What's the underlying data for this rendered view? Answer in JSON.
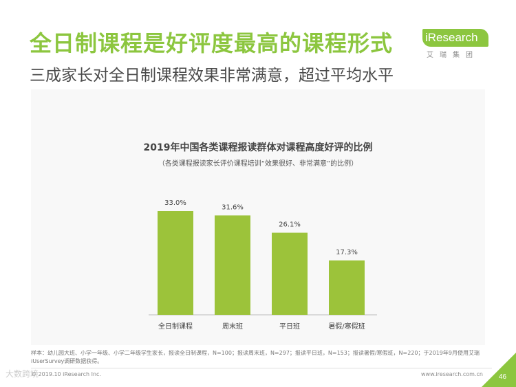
{
  "header": {
    "title": "全日制课程是好评度最高的课程形式",
    "subtitle": "三成家长对全日制课程效果非常满意，超过平均水平"
  },
  "logo": {
    "text": "iResearch",
    "chinese": "艾瑞集团",
    "color": "#8cc63f"
  },
  "chart_data": {
    "type": "bar",
    "title": "2019年中国各类课程报读群体对课程高度好评的比例",
    "subtitle": "（各类课程报读家长评价课程培训“效果很好、非常满意”的比例）",
    "categories": [
      "全日制课程",
      "周末班",
      "平日班",
      "暑假/寒假班"
    ],
    "values": [
      33.0,
      31.6,
      26.1,
      17.3
    ],
    "value_labels": [
      "33.0%",
      "31.6%",
      "26.1%",
      "17.3%"
    ],
    "bar_color": "#9cc33a",
    "ylim": [
      0,
      33.0
    ],
    "grid": false,
    "xlabel": "",
    "ylabel": ""
  },
  "footer": {
    "note": "样本：幼儿园大班、小学一年级、小学二年级学生家长，报读全日制课程，N=100；报读周末班，N=297；报读平日班，N=153；报读暑假/寒假班，N=220；于2019年9月使用艾瑞iUserSurvey调研数据获得。",
    "copyright": "© 2019.10 iResearch Inc.",
    "website": "www.iresearch.com.cn",
    "page_number": "46",
    "watermark": "大数跨境"
  }
}
